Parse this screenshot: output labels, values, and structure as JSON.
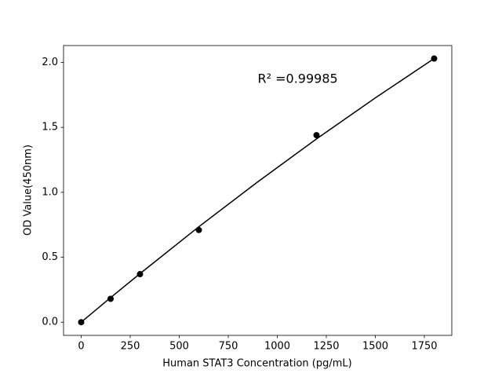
{
  "chart_data": {
    "type": "scatter",
    "xlabel": "Human STAT3 Concentration (pg/mL)",
    "ylabel": "OD Value(450nm)",
    "annotation": {
      "text": "R² =0.99985",
      "x": 900,
      "y": 1.87
    },
    "x": [
      0,
      150,
      300,
      600,
      1200,
      1800
    ],
    "values": [
      0,
      0.18,
      0.37,
      0.71,
      1.44,
      2.03
    ],
    "color": "#000000",
    "fit": {
      "x": [
        0,
        150,
        300,
        600,
        900,
        1200,
        1500,
        1800
      ],
      "values": [
        0,
        0.189,
        0.374,
        0.735,
        1.08,
        1.411,
        1.727,
        2.03
      ],
      "color": "#000000"
    },
    "xlim": [
      -90,
      1890
    ],
    "xticks": [
      0,
      250,
      500,
      750,
      1000,
      1250,
      1500,
      1750
    ],
    "ylim": [
      -0.1015,
      2.13
    ],
    "yticks": [
      {
        "value": 0,
        "label": "0.0"
      },
      {
        "value": 0.5,
        "label": "0.5"
      },
      {
        "value": 1,
        "label": "1.0"
      },
      {
        "value": 1.5,
        "label": "1.5"
      },
      {
        "value": 2,
        "label": "2.0"
      }
    ]
  }
}
